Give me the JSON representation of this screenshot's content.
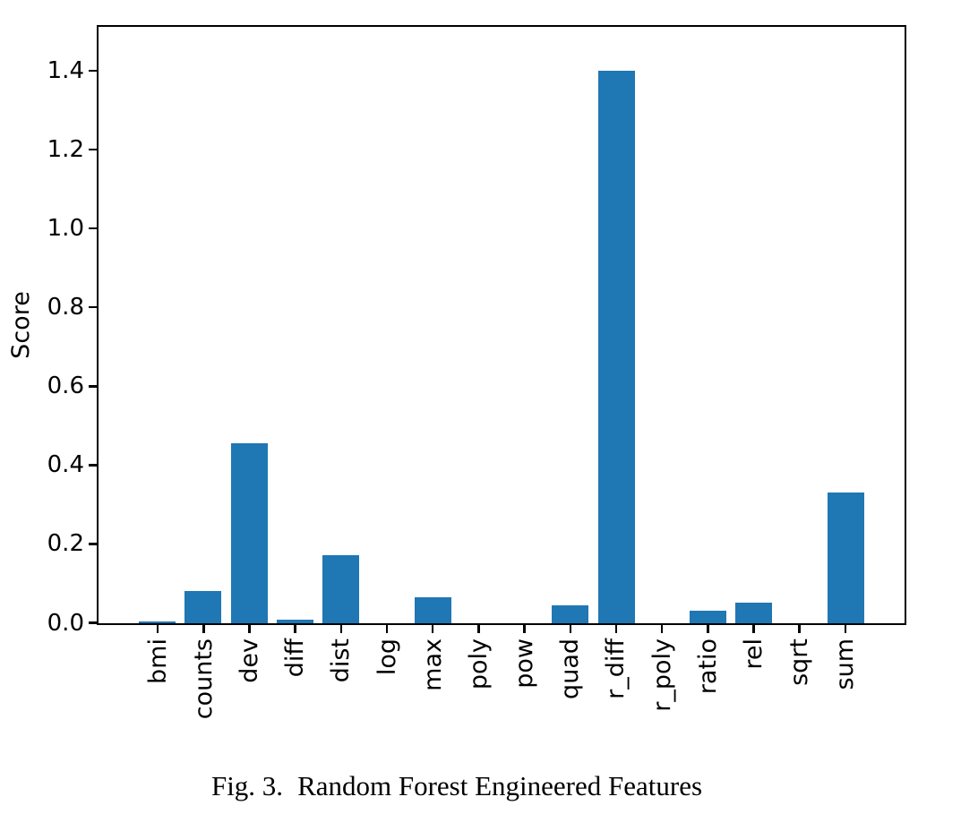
{
  "figure": {
    "caption_label": "Fig. 3.",
    "caption_title": "Random Forest Engineered Features"
  },
  "chart_data": {
    "type": "bar",
    "title": "",
    "xlabel": "",
    "ylabel": "Score",
    "categories": [
      "bmi",
      "counts",
      "dev",
      "diff",
      "dist",
      "log",
      "max",
      "poly",
      "pow",
      "quad",
      "r_diff",
      "r_poly",
      "ratio",
      "rel",
      "sqrt",
      "sum"
    ],
    "values": [
      0.005,
      0.081,
      0.455,
      0.008,
      0.173,
      0.0,
      0.065,
      0.0,
      0.0,
      0.046,
      1.4,
      0.0,
      0.032,
      0.052,
      0.0,
      0.33
    ],
    "yticks": [
      0.0,
      0.2,
      0.4,
      0.6,
      0.8,
      1.0,
      1.2,
      1.4
    ],
    "ylim": [
      0,
      1.51
    ],
    "bar_color": "#1f77b4",
    "grid": false,
    "legend_position": "none",
    "xtick_rotation": 90
  }
}
